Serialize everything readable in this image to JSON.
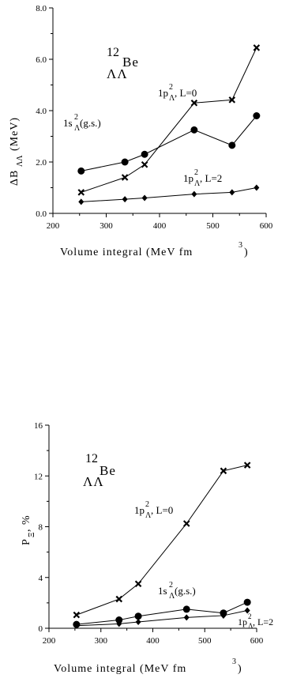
{
  "chart_data": [
    {
      "type": "line",
      "title": "",
      "xlabel": "Volume integral (MeV fm3)",
      "ylabel": "ΔB ΛΛ (MeV)",
      "xlim": [
        200,
        600
      ],
      "ylim": [
        0,
        8
      ],
      "x_ticks": [
        "200",
        "300",
        "400",
        "500",
        "600"
      ],
      "y_ticks": [
        "0.0",
        "2.0",
        "4.0",
        "6.0",
        "8.0"
      ],
      "x": [
        253,
        335,
        372,
        465,
        536,
        582
      ],
      "series": [
        {
          "name": "1s2Λ(g.s.)",
          "marker": "circle",
          "values": [
            1.65,
            2.0,
            2.3,
            3.25,
            2.65,
            3.8
          ]
        },
        {
          "name": "1p2Λ, L=0",
          "marker": "x",
          "values": [
            0.82,
            1.4,
            1.9,
            4.3,
            4.42,
            6.45
          ]
        },
        {
          "name": "1p2Λ, L=2",
          "marker": "diamond",
          "values": [
            0.45,
            0.55,
            0.6,
            0.75,
            0.82,
            1.0
          ]
        }
      ],
      "nucleus": {
        "mass": "12",
        "sub": "ΛΛ",
        "symbol": "Be"
      }
    },
    {
      "type": "line",
      "title": "",
      "xlabel": "Volume integral (MeV fm3)",
      "ylabel": "PΞ, %",
      "xlim": [
        200,
        600
      ],
      "ylim": [
        0,
        16
      ],
      "x_ticks": [
        "200",
        "300",
        "400",
        "500",
        "600"
      ],
      "y_ticks": [
        "0",
        "4",
        "8",
        "12",
        "16"
      ],
      "x": [
        253,
        335,
        372,
        465,
        536,
        582
      ],
      "series": [
        {
          "name": "1p2Λ, L=0",
          "marker": "x",
          "values": [
            1.05,
            2.3,
            3.5,
            8.25,
            12.4,
            12.85
          ]
        },
        {
          "name": "1s2Λ(g.s.)",
          "marker": "circle",
          "values": [
            0.3,
            0.65,
            0.95,
            1.5,
            1.2,
            2.05
          ]
        },
        {
          "name": "1p2Λ, L=2",
          "marker": "diamond",
          "values": [
            0.2,
            0.35,
            0.5,
            0.85,
            1.0,
            1.4
          ]
        }
      ],
      "nucleus": {
        "mass": "12",
        "sub": "ΛΛ",
        "symbol": "Be"
      }
    }
  ],
  "labels": {
    "top": {
      "xlabel_main": "Volume integral (MeV fm",
      "xlabel_exp": "3",
      "xlabel_close": ")",
      "ylabel_delta": "ΔB",
      "ylabel_sub": "ΛΛ",
      "ylabel_unit": "(MeV)",
      "gs_main": "1s",
      "gs_sup": "2",
      "gs_sub": "Λ",
      "gs_tail": "(g.s.)",
      "l0_main": "1p",
      "l0_sup": "2",
      "l0_sub": "Λ",
      "l0_tail": ", L=0",
      "l2_main": "1p",
      "l2_sup": "2",
      "l2_sub": "Λ",
      "l2_tail": ", L=2"
    },
    "bottom": {
      "xlabel_main": "Volume integral (MeV fm",
      "xlabel_exp": "3",
      "xlabel_close": ")",
      "ylabel_p": "P",
      "ylabel_sub": "Ξ",
      "ylabel_unit": ", %",
      "gs_main": "1s",
      "gs_sup": "2",
      "gs_sub": "Λ",
      "gs_tail": "(g.s.)",
      "l0_main": "1p",
      "l0_sup": "2",
      "l0_sub": "Λ",
      "l0_tail": ", L=0",
      "l2_main": "1p",
      "l2_sup": "2",
      "l2_sub": "Λ",
      "l2_tail": ", L=2"
    }
  }
}
